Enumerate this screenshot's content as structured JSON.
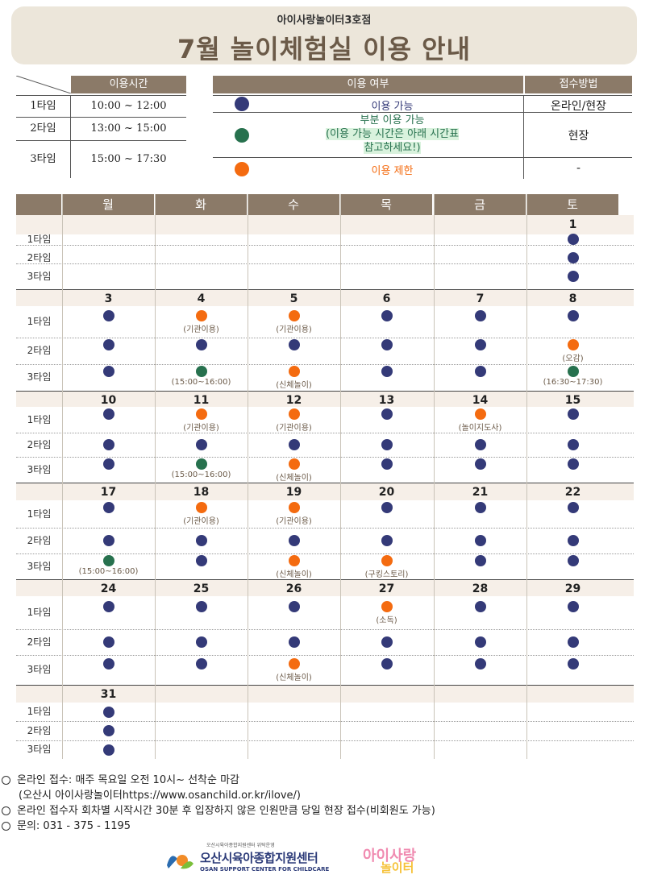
{
  "header": {
    "subtitle": "아이사랑놀이터3호점",
    "title": "7월 놀이체험실 이용 안내"
  },
  "time_table": {
    "header": "이용시간",
    "rows": [
      {
        "name": "1타임",
        "time": "10:00 ~ 12:00"
      },
      {
        "name": "2타임",
        "time": "13:00 ~ 15:00"
      },
      {
        "name": "3타임",
        "time": "15:00 ~ 17:30"
      }
    ]
  },
  "legend": {
    "header_usage": "이용 여부",
    "header_method": "접수방법",
    "rows": [
      {
        "color": "#343a78",
        "text": "이용 가능",
        "method": "온라인/현장"
      },
      {
        "color": "#27714e",
        "text_line1": "부분 이용 가능",
        "text_line2": "(이용 가능 시간은 아래 시간표",
        "text_line3": "참고하세요!)",
        "method": "현장"
      },
      {
        "color": "#f46b10",
        "text": "이용 제한",
        "method": "-"
      }
    ]
  },
  "calendar": {
    "days": [
      "월",
      "화",
      "수",
      "목",
      "금",
      "토"
    ],
    "time_labels": [
      "1타임",
      "2타임",
      "3타임"
    ],
    "colors": {
      "available": "#343a78",
      "partial": "#27714e",
      "restricted": "#f46b10"
    },
    "weeks": [
      {
        "dates": [
          "",
          "",
          "",
          "",
          "",
          "1"
        ],
        "slots": [
          [
            "",
            "",
            "",
            "",
            "",
            "a"
          ],
          [
            "",
            "",
            "",
            "",
            "",
            "a"
          ],
          [
            "",
            "",
            "",
            "",
            "",
            "a"
          ]
        ],
        "notes": [
          [
            "",
            "",
            "",
            "",
            "",
            ""
          ],
          [
            "",
            "",
            "",
            "",
            "",
            ""
          ],
          [
            "",
            "",
            "",
            "",
            "",
            ""
          ]
        ]
      },
      {
        "dates": [
          "3",
          "4",
          "5",
          "6",
          "7",
          "8"
        ],
        "slots": [
          [
            "a",
            "r",
            "r",
            "a",
            "a",
            "a"
          ],
          [
            "a",
            "a",
            "a",
            "a",
            "a",
            "r"
          ],
          [
            "a",
            "p",
            "r",
            "a",
            "a",
            "p"
          ]
        ],
        "notes": [
          [
            "",
            "(기관이용)",
            "(기관이용)",
            "",
            "",
            ""
          ],
          [
            "",
            "",
            "",
            "",
            "",
            "(오감)"
          ],
          [
            "",
            "(15:00~16:00)",
            "(신체놀이)",
            "",
            "",
            "(16:30~17:30)"
          ]
        ]
      },
      {
        "dates": [
          "10",
          "11",
          "12",
          "13",
          "14",
          "15"
        ],
        "slots": [
          [
            "a",
            "r",
            "r",
            "a",
            "r",
            "a"
          ],
          [
            "a",
            "a",
            "a",
            "a",
            "a",
            "a"
          ],
          [
            "a",
            "p",
            "r",
            "a",
            "a",
            "a"
          ]
        ],
        "notes": [
          [
            "",
            "(기관이용)",
            "(기관이용)",
            "",
            "(놀이지도사)",
            ""
          ],
          [
            "",
            "",
            "",
            "",
            "",
            ""
          ],
          [
            "",
            "(15:00~16:00)",
            "(신체놀이)",
            "",
            "",
            ""
          ]
        ]
      },
      {
        "dates": [
          "17",
          "18",
          "19",
          "20",
          "21",
          "22"
        ],
        "slots": [
          [
            "a",
            "r",
            "r",
            "a",
            "a",
            "a"
          ],
          [
            "a",
            "a",
            "a",
            "a",
            "a",
            "a"
          ],
          [
            "p",
            "a",
            "r",
            "r",
            "a",
            "a"
          ]
        ],
        "notes": [
          [
            "",
            "(기관이용)",
            "(기관이용)",
            "",
            "",
            ""
          ],
          [
            "",
            "",
            "",
            "",
            "",
            ""
          ],
          [
            "(15:00~16:00)",
            "",
            "(신체놀이)",
            "(구킹스토리)",
            "",
            ""
          ]
        ]
      },
      {
        "dates": [
          "24",
          "25",
          "26",
          "27",
          "28",
          "29"
        ],
        "slots": [
          [
            "a",
            "a",
            "a",
            "r",
            "a",
            "a"
          ],
          [
            "a",
            "a",
            "a",
            "a",
            "a",
            "a"
          ],
          [
            "a",
            "a",
            "r",
            "a",
            "a",
            "a"
          ]
        ],
        "notes": [
          [
            "",
            "",
            "",
            "(소독)",
            "",
            ""
          ],
          [
            "",
            "",
            "",
            "",
            "",
            ""
          ],
          [
            "",
            "",
            "(신체놀이)",
            "",
            "",
            ""
          ]
        ]
      },
      {
        "dates": [
          "31",
          "",
          "",
          "",
          "",
          ""
        ],
        "slots": [
          [
            "a",
            "",
            "",
            "",
            "",
            ""
          ],
          [
            "a",
            "",
            "",
            "",
            "",
            ""
          ],
          [
            "a",
            "",
            "",
            "",
            "",
            ""
          ]
        ],
        "notes": [
          [
            "",
            "",
            "",
            "",
            "",
            ""
          ],
          [
            "",
            "",
            "",
            "",
            "",
            ""
          ],
          [
            "",
            "",
            "",
            "",
            "",
            ""
          ]
        ]
      }
    ]
  },
  "notes": [
    "온라인 접수: 매주 목요일 오전 10시~ 선착순 마감",
    "(오산시 아이사랑놀이터https://www.osanchild.or.kr/ilove/)",
    "온라인 접수자 회차별 시작시간 30분 후 입장하지 않은 인원만큼 당일 현장 접수(비회원도 가능)",
    "문의: 031 - 375 - 1195"
  ],
  "logos": {
    "center_small": "오산시육아종합지원센터 위탁운영",
    "center_name": "오산시육아종합지원센터",
    "center_en": "OSAN SUPPORT CENTER FOR CHILDCARE",
    "ilove_line1": "아이사랑",
    "ilove_line2": "놀이터"
  }
}
